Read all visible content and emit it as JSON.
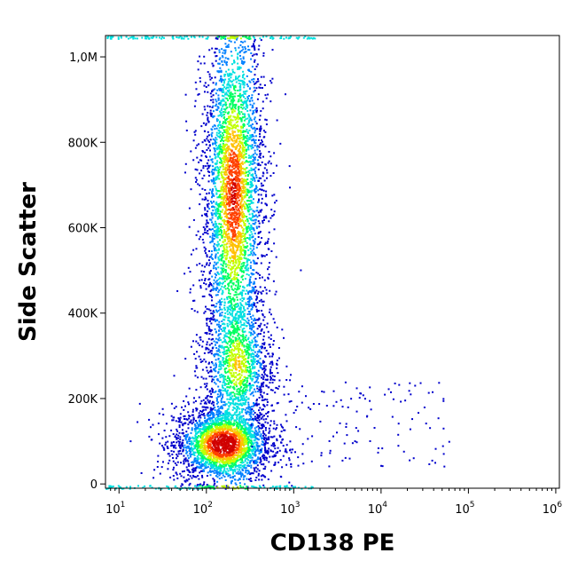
{
  "chart_data": {
    "type": "scatter",
    "style": "density-colored flow cytometry dot plot",
    "xlabel": "CD138 PE",
    "ylabel": "Side Scatter",
    "x_scale": "log",
    "xlim": [
      7,
      1100000
    ],
    "ylim": [
      -10000,
      1050000
    ],
    "x_ticks": [
      {
        "value": 10,
        "base": "10",
        "exp": "1"
      },
      {
        "value": 100,
        "base": "10",
        "exp": "2"
      },
      {
        "value": 1000,
        "base": "10",
        "exp": "3"
      },
      {
        "value": 10000,
        "base": "10",
        "exp": "4"
      },
      {
        "value": 100000,
        "base": "10",
        "exp": "5"
      },
      {
        "value": 1000000,
        "base": "10",
        "exp": "6"
      }
    ],
    "y_ticks": [
      {
        "value": 0,
        "label": "0"
      },
      {
        "value": 200000,
        "label": "200K"
      },
      {
        "value": 400000,
        "label": "400K"
      },
      {
        "value": 600000,
        "label": "600K"
      },
      {
        "value": 800000,
        "label": "800K"
      },
      {
        "value": 1000000,
        "label": "1,0M"
      }
    ],
    "populations": [
      {
        "x_center": 150,
        "y_center": 95000,
        "x_spread_log": 0.2,
        "y_spread": 30000,
        "peak_density": "high"
      },
      {
        "x_center": 200,
        "y_center": 680000,
        "x_spread_log": 0.12,
        "y_spread": 150000,
        "peak_density": "high"
      },
      {
        "x_center": 230,
        "y_center": 280000,
        "x_spread_log": 0.13,
        "y_spread": 55000,
        "peak_density": "medium"
      }
    ],
    "colors": [
      "#0000cc",
      "#0080ff",
      "#00e0e0",
      "#00ff60",
      "#c0ff00",
      "#ffc000",
      "#ff4000",
      "#d00000"
    ],
    "grid": false,
    "legend": "none"
  }
}
